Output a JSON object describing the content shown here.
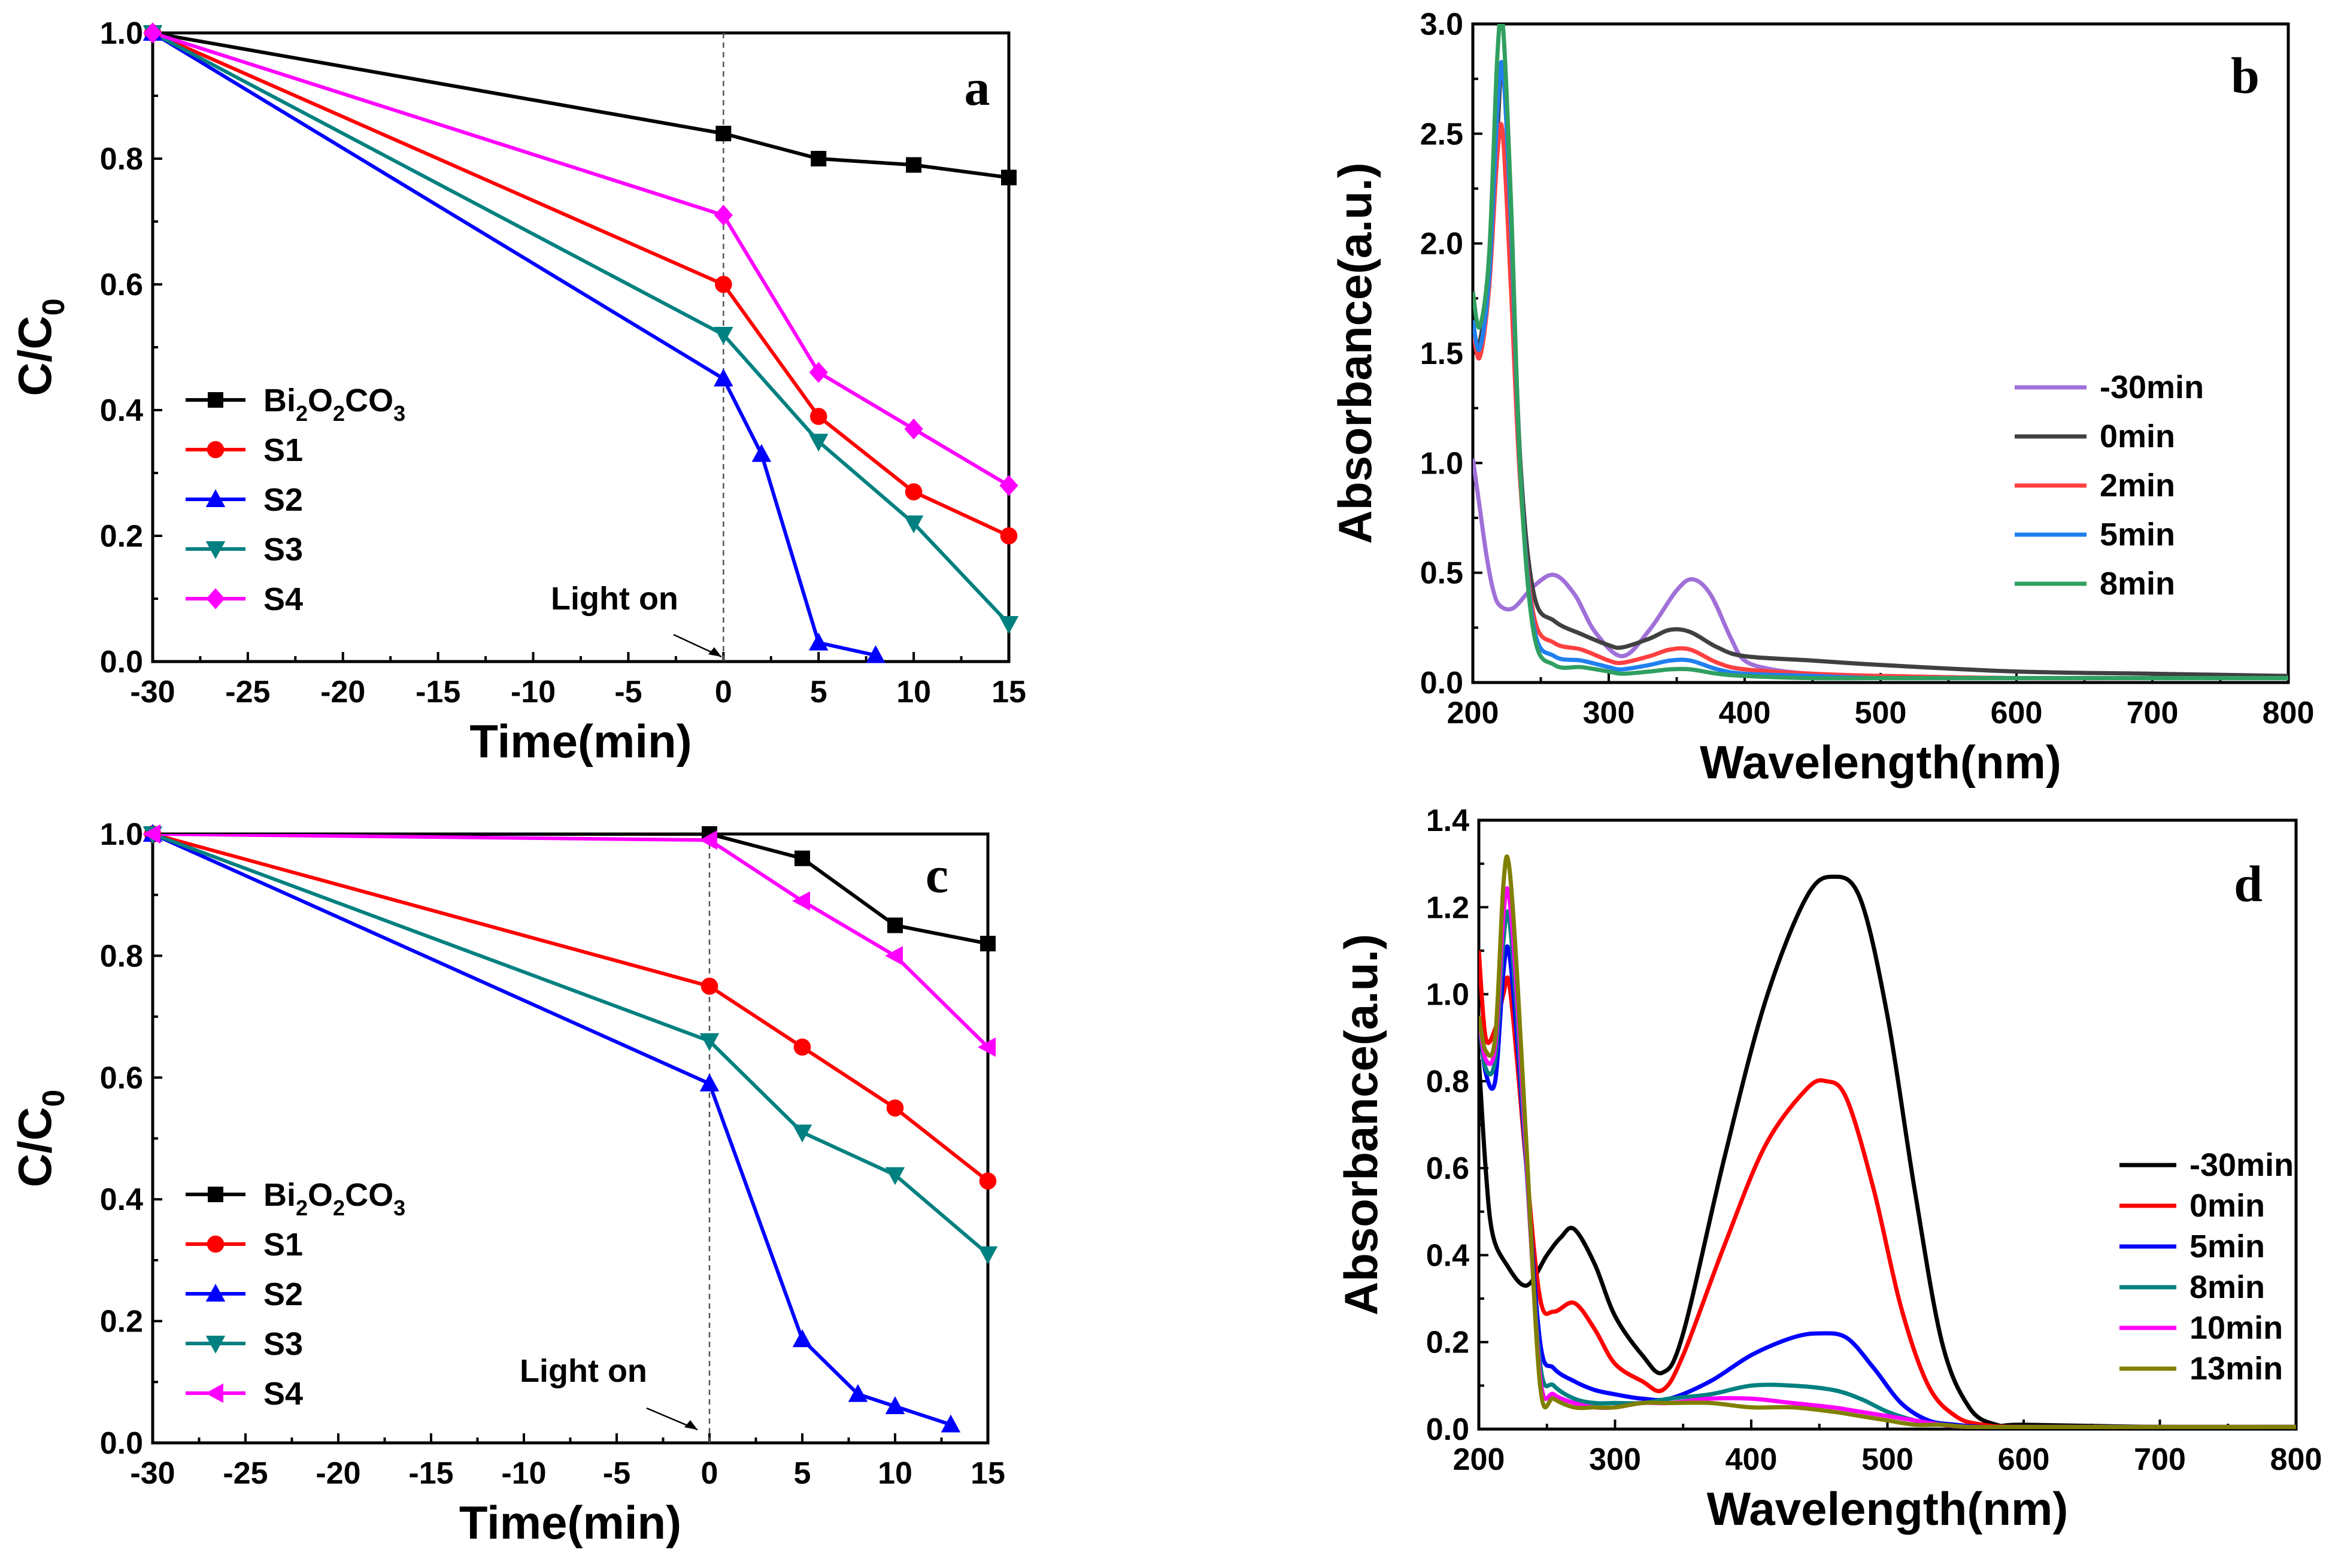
{
  "panels": [
    {
      "id": "a",
      "type": "line",
      "letter": "a",
      "xlabel": "Time(min)",
      "ylabel": "C/C",
      "ylabel_sub": "0",
      "xlim": [
        -30,
        15
      ],
      "ylim": [
        0.0,
        1.0
      ],
      "xticks": [
        -30,
        -25,
        -20,
        -15,
        -10,
        -5,
        0,
        5,
        10,
        15
      ],
      "yticks": [
        "0.0",
        "0.2",
        "0.4",
        "0.6",
        "0.8",
        "1.0"
      ],
      "annotation": "Light on",
      "vline_x": 0,
      "series": [
        {
          "name": "Bi2O2CO3",
          "label_parts": [
            "Bi",
            "2",
            "O",
            "2",
            "CO",
            "3"
          ],
          "color": "#000000",
          "marker": "square",
          "x": [
            -30,
            0,
            5,
            10,
            15
          ],
          "y": [
            1.0,
            0.84,
            0.8,
            0.79,
            0.77
          ]
        },
        {
          "name": "S1",
          "label_parts": [
            "S1"
          ],
          "color": "#ff0000",
          "marker": "circle",
          "x": [
            -30,
            0,
            5,
            10,
            15
          ],
          "y": [
            1.0,
            0.6,
            0.39,
            0.27,
            0.2
          ]
        },
        {
          "name": "S2",
          "label_parts": [
            "S2"
          ],
          "color": "#0000ff",
          "marker": "triangle-up",
          "x": [
            -30,
            0,
            2,
            5,
            8
          ],
          "y": [
            1.0,
            0.45,
            0.33,
            0.03,
            0.01
          ]
        },
        {
          "name": "S3",
          "label_parts": [
            "S3"
          ],
          "color": "#008080",
          "marker": "triangle-down",
          "x": [
            -30,
            0,
            5,
            10,
            15
          ],
          "y": [
            1.0,
            0.52,
            0.35,
            0.22,
            0.06
          ]
        },
        {
          "name": "S4",
          "label_parts": [
            "S4"
          ],
          "color": "#ff00ff",
          "marker": "diamond",
          "x": [
            -30,
            0,
            5,
            10,
            15
          ],
          "y": [
            1.0,
            0.71,
            0.46,
            0.37,
            0.28
          ]
        }
      ]
    },
    {
      "id": "c",
      "type": "line",
      "letter": "c",
      "xlabel": "Time(min)",
      "ylabel": "C/C",
      "ylabel_sub": "0",
      "xlim": [
        -30,
        15
      ],
      "ylim": [
        0.0,
        1.0
      ],
      "xticks": [
        -30,
        -25,
        -20,
        -15,
        -10,
        -5,
        0,
        5,
        10,
        15
      ],
      "yticks": [
        "0.0",
        "0.2",
        "0.4",
        "0.6",
        "0.8",
        "1.0"
      ],
      "annotation": "Light on",
      "vline_x": 0,
      "series": [
        {
          "name": "Bi2O2CO3",
          "label_parts": [
            "Bi",
            "2",
            "O",
            "2",
            "CO",
            "3"
          ],
          "color": "#000000",
          "marker": "square",
          "x": [
            -30,
            0,
            5,
            10,
            15
          ],
          "y": [
            1.0,
            1.0,
            0.96,
            0.85,
            0.82
          ]
        },
        {
          "name": "S1",
          "label_parts": [
            "S1"
          ],
          "color": "#ff0000",
          "marker": "circle",
          "x": [
            -30,
            0,
            5,
            10,
            15
          ],
          "y": [
            1.0,
            0.75,
            0.65,
            0.55,
            0.43
          ]
        },
        {
          "name": "S2",
          "label_parts": [
            "S2"
          ],
          "color": "#0000ff",
          "marker": "triangle-up",
          "x": [
            -30,
            0,
            5,
            8,
            10,
            13
          ],
          "y": [
            1.0,
            0.59,
            0.17,
            0.08,
            0.06,
            0.03
          ]
        },
        {
          "name": "S3",
          "label_parts": [
            "S3"
          ],
          "color": "#008080",
          "marker": "triangle-down",
          "x": [
            -30,
            0,
            5,
            10,
            15
          ],
          "y": [
            1.0,
            0.66,
            0.51,
            0.44,
            0.31
          ]
        },
        {
          "name": "S4",
          "label_parts": [
            "S4"
          ],
          "color": "#ff00ff",
          "marker": "triangle-left",
          "x": [
            -30,
            0,
            5,
            10,
            15
          ],
          "y": [
            1.0,
            0.99,
            0.89,
            0.8,
            0.65
          ]
        }
      ]
    },
    {
      "id": "b",
      "type": "line",
      "letter": "b",
      "xlabel": "Wavelength(nm)",
      "ylabel": "Absorbance(a.u.)",
      "xlim": [
        200,
        800
      ],
      "ylim": [
        0.0,
        3.0
      ],
      "xticks": [
        200,
        300,
        400,
        500,
        600,
        700,
        800
      ],
      "yticks": [
        "0.0",
        "0.5",
        "1.0",
        "1.5",
        "2.0",
        "2.5",
        "3.0"
      ],
      "series": [
        {
          "name": "-30min",
          "color": "#a070d8",
          "x": [
            200,
            205,
            210,
            215,
            220,
            230,
            245,
            260,
            275,
            290,
            310,
            330,
            350,
            362,
            375,
            390,
            400,
            420,
            450,
            500,
            600,
            700,
            800
          ],
          "y": [
            1.02,
            0.8,
            0.58,
            0.42,
            0.35,
            0.34,
            0.44,
            0.49,
            0.4,
            0.23,
            0.12,
            0.24,
            0.42,
            0.47,
            0.4,
            0.2,
            0.1,
            0.06,
            0.04,
            0.03,
            0.02,
            0.02,
            0.02
          ]
        },
        {
          "name": "0min",
          "color": "#404040",
          "x": [
            200,
            205,
            212,
            218,
            222,
            228,
            235,
            245,
            260,
            280,
            300,
            310,
            330,
            345,
            360,
            380,
            400,
            450,
            500,
            600,
            700,
            800
          ],
          "y": [
            1.62,
            1.55,
            1.9,
            2.5,
            2.8,
            2.1,
            1.0,
            0.4,
            0.28,
            0.22,
            0.17,
            0.16,
            0.2,
            0.24,
            0.23,
            0.16,
            0.12,
            0.1,
            0.08,
            0.05,
            0.04,
            0.03
          ]
        },
        {
          "name": "2min",
          "color": "#ff4040",
          "x": [
            200,
            205,
            212,
            218,
            222,
            228,
            235,
            245,
            260,
            280,
            300,
            310,
            330,
            345,
            360,
            380,
            400,
            450,
            500,
            600,
            700,
            800
          ],
          "y": [
            1.62,
            1.48,
            1.8,
            2.4,
            2.5,
            1.8,
            0.9,
            0.3,
            0.18,
            0.15,
            0.1,
            0.09,
            0.12,
            0.15,
            0.15,
            0.09,
            0.06,
            0.04,
            0.03,
            0.02,
            0.02,
            0.02
          ]
        },
        {
          "name": "5min",
          "color": "#2080f0",
          "x": [
            200,
            205,
            212,
            218,
            222,
            228,
            235,
            245,
            260,
            280,
            300,
            310,
            330,
            345,
            360,
            380,
            400,
            450,
            500,
            600,
            700,
            800
          ],
          "y": [
            1.65,
            1.52,
            1.85,
            2.6,
            2.8,
            2.1,
            0.95,
            0.25,
            0.12,
            0.1,
            0.07,
            0.06,
            0.08,
            0.1,
            0.1,
            0.06,
            0.04,
            0.03,
            0.02,
            0.02,
            0.02,
            0.02
          ]
        },
        {
          "name": "8min",
          "color": "#30a060",
          "x": [
            200,
            205,
            212,
            218,
            222,
            228,
            235,
            245,
            260,
            280,
            300,
            310,
            330,
            345,
            360,
            380,
            400,
            450,
            500,
            600,
            700,
            800
          ],
          "y": [
            1.78,
            1.62,
            1.95,
            2.85,
            3.0,
            2.2,
            0.95,
            0.22,
            0.08,
            0.07,
            0.05,
            0.04,
            0.05,
            0.06,
            0.06,
            0.04,
            0.03,
            0.02,
            0.02,
            0.02,
            0.02,
            0.02
          ]
        }
      ]
    },
    {
      "id": "d",
      "type": "line",
      "letter": "d",
      "xlabel": "Wavelength(nm)",
      "ylabel": "Absorbance(a.u.)",
      "xlim": [
        200,
        800
      ],
      "ylim": [
        0.0,
        1.4
      ],
      "xticks": [
        200,
        300,
        400,
        500,
        600,
        700,
        800
      ],
      "yticks": [
        "0.0",
        "0.2",
        "0.4",
        "0.6",
        "0.8",
        "1.0",
        "1.2",
        "1.4"
      ],
      "series": [
        {
          "name": "-30min",
          "color": "#000000",
          "x": [
            200,
            205,
            210,
            220,
            235,
            250,
            260,
            270,
            285,
            300,
            320,
            335,
            350,
            380,
            410,
            440,
            460,
            480,
            500,
            520,
            540,
            560,
            580,
            600,
            700,
            800
          ],
          "y": [
            0.85,
            0.6,
            0.45,
            0.38,
            0.33,
            0.4,
            0.44,
            0.46,
            0.38,
            0.26,
            0.17,
            0.13,
            0.22,
            0.62,
            0.98,
            1.22,
            1.27,
            1.22,
            0.95,
            0.55,
            0.2,
            0.05,
            0.01,
            0.01,
            0.005,
            0.005
          ]
        },
        {
          "name": "0min",
          "color": "#ff0000",
          "x": [
            200,
            205,
            212,
            218,
            222,
            228,
            235,
            245,
            255,
            270,
            285,
            300,
            320,
            335,
            350,
            380,
            410,
            440,
            455,
            470,
            490,
            510,
            530,
            550,
            570,
            600,
            700,
            800
          ],
          "y": [
            1.1,
            0.9,
            0.92,
            1.0,
            1.03,
            0.85,
            0.6,
            0.3,
            0.27,
            0.29,
            0.23,
            0.15,
            0.11,
            0.09,
            0.17,
            0.42,
            0.65,
            0.78,
            0.8,
            0.76,
            0.55,
            0.28,
            0.1,
            0.03,
            0.01,
            0.005,
            0.005,
            0.005
          ]
        },
        {
          "name": "5min",
          "color": "#0000ff",
          "x": [
            200,
            205,
            212,
            218,
            222,
            228,
            235,
            245,
            255,
            270,
            285,
            300,
            320,
            340,
            370,
            400,
            430,
            450,
            470,
            490,
            510,
            530,
            550,
            570,
            600,
            700,
            800
          ],
          "y": [
            0.95,
            0.82,
            0.8,
            1.05,
            1.1,
            0.9,
            0.6,
            0.2,
            0.14,
            0.11,
            0.09,
            0.08,
            0.07,
            0.07,
            0.11,
            0.17,
            0.21,
            0.22,
            0.21,
            0.14,
            0.06,
            0.02,
            0.01,
            0.005,
            0.005,
            0.005,
            0.005
          ]
        },
        {
          "name": "8min",
          "color": "#008080",
          "x": [
            200,
            205,
            212,
            218,
            222,
            228,
            235,
            245,
            255,
            270,
            285,
            300,
            320,
            340,
            370,
            400,
            430,
            460,
            480,
            500,
            520,
            540,
            560,
            600,
            700,
            800
          ],
          "y": [
            0.95,
            0.83,
            0.85,
            1.12,
            1.18,
            0.95,
            0.6,
            0.15,
            0.1,
            0.07,
            0.06,
            0.06,
            0.06,
            0.07,
            0.08,
            0.1,
            0.1,
            0.09,
            0.07,
            0.04,
            0.02,
            0.01,
            0.005,
            0.005,
            0.005,
            0.005
          ]
        },
        {
          "name": "10min",
          "color": "#ff00ff",
          "x": [
            200,
            205,
            212,
            218,
            222,
            228,
            235,
            245,
            255,
            270,
            285,
            300,
            320,
            340,
            370,
            400,
            430,
            460,
            480,
            500,
            520,
            540,
            560,
            600,
            700,
            800
          ],
          "y": [
            0.95,
            0.85,
            0.88,
            1.18,
            1.23,
            1.0,
            0.62,
            0.12,
            0.08,
            0.06,
            0.05,
            0.05,
            0.06,
            0.06,
            0.07,
            0.07,
            0.06,
            0.05,
            0.04,
            0.03,
            0.02,
            0.01,
            0.005,
            0.005,
            0.005,
            0.005
          ]
        },
        {
          "name": "13min",
          "color": "#808000",
          "x": [
            200,
            205,
            212,
            218,
            222,
            228,
            235,
            245,
            255,
            270,
            285,
            300,
            320,
            340,
            370,
            400,
            430,
            460,
            480,
            500,
            520,
            540,
            560,
            600,
            700,
            800
          ],
          "y": [
            0.95,
            0.87,
            0.9,
            1.25,
            1.3,
            1.05,
            0.65,
            0.1,
            0.07,
            0.05,
            0.05,
            0.05,
            0.06,
            0.06,
            0.06,
            0.05,
            0.05,
            0.04,
            0.03,
            0.02,
            0.01,
            0.01,
            0.005,
            0.005,
            0.005,
            0.005
          ]
        }
      ]
    }
  ]
}
